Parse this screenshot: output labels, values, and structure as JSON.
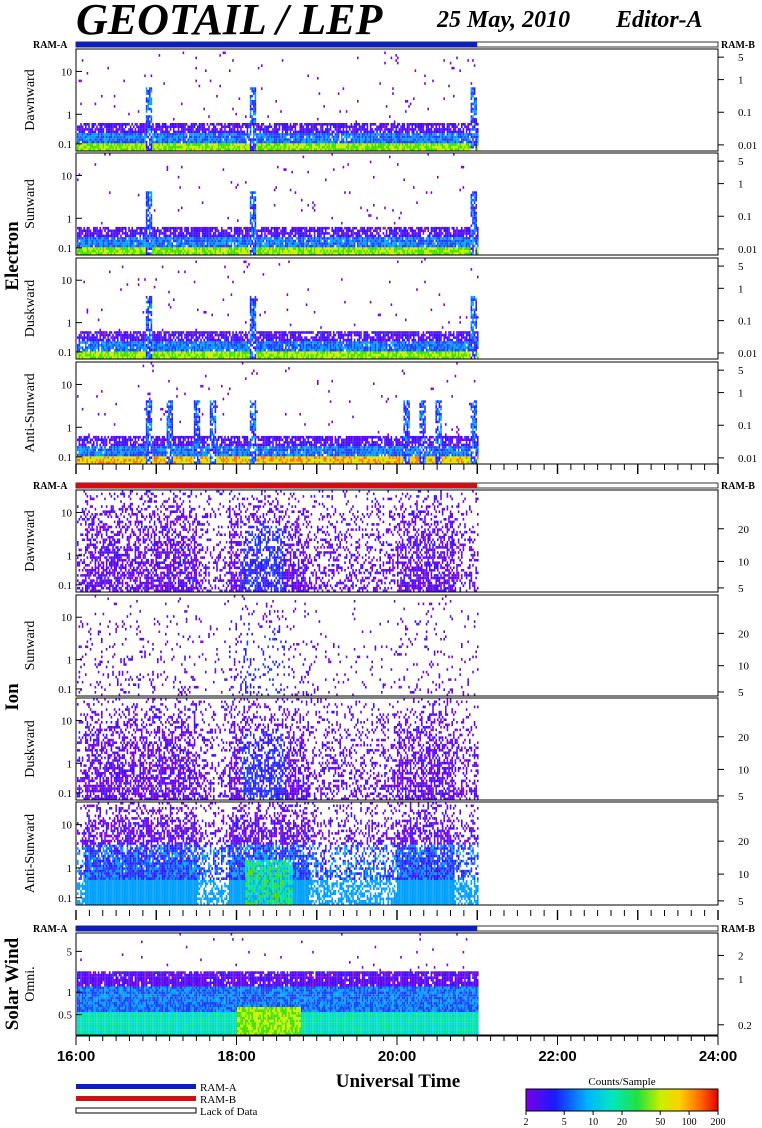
{
  "header": {
    "title": "GEOTAIL / LEP",
    "date": "25 May, 2010",
    "editor": "Editor-A"
  },
  "colors": {
    "ram_a": "#0a1ec8",
    "ram_b": "#d01010",
    "frame": "#000000",
    "background": "#ffffff"
  },
  "chart_data": {
    "type": "heatmap",
    "xlabel": "Universal Time",
    "x_ticks": [
      "16:00",
      "18:00",
      "20:00",
      "22:00",
      "24:00"
    ],
    "x_range": [
      "16:00",
      "24:00"
    ],
    "data_end": "21:00",
    "groups": [
      {
        "name": "Electron",
        "ram_left": "RAM-A",
        "ram_right": "RAM-B",
        "ram_state": "RAM-A",
        "panels": [
          {
            "label": "Dawnward",
            "left_ticks": [
              "10",
              "1",
              "0.1"
            ],
            "right_ticks": [
              "5",
              "1",
              "0.1",
              "0.01"
            ],
            "activity": "electron"
          },
          {
            "label": "Sunward",
            "left_ticks": [
              "10",
              "1",
              "0.1"
            ],
            "right_ticks": [
              "5",
              "1",
              "0.1",
              "0.01"
            ],
            "activity": "electron"
          },
          {
            "label": "Duskward",
            "left_ticks": [
              "10",
              "1",
              "0.1"
            ],
            "right_ticks": [
              "5",
              "1",
              "0.1",
              "0.01"
            ],
            "activity": "electron"
          },
          {
            "label": "Anti-Sunward",
            "left_ticks": [
              "10",
              "1",
              "0.1"
            ],
            "right_ticks": [
              "5",
              "1",
              "0.1",
              "0.01"
            ],
            "activity": "electron-anti"
          }
        ]
      },
      {
        "name": "Ion",
        "ram_left": "RAM-A",
        "ram_right": "RAM-B",
        "ram_state": "RAM-B",
        "panels": [
          {
            "label": "Dawnward",
            "left_ticks": [
              "10",
              "1",
              "0.1"
            ],
            "right_ticks": [
              "20",
              "10",
              "5"
            ],
            "activity": "ion"
          },
          {
            "label": "Sunward",
            "left_ticks": [
              "10",
              "1",
              "0.1"
            ],
            "right_ticks": [
              "20",
              "10",
              "5"
            ],
            "activity": "ion-sparse"
          },
          {
            "label": "Duskward",
            "left_ticks": [
              "10",
              "1",
              "0.1"
            ],
            "right_ticks": [
              "20",
              "10",
              "5"
            ],
            "activity": "ion"
          },
          {
            "label": "Anti-Sunward",
            "left_ticks": [
              "10",
              "1",
              "0.1"
            ],
            "right_ticks": [
              "20",
              "10",
              "5"
            ],
            "activity": "ion-anti"
          }
        ]
      },
      {
        "name": "Solar Wind",
        "ram_left": "RAM-A",
        "ram_right": "RAM-B",
        "ram_state": "RAM-A",
        "panels": [
          {
            "label": "Omni.",
            "left_ticks": [
              "5",
              "1",
              "0.5"
            ],
            "right_ticks": [
              "2",
              "1",
              "0.2"
            ],
            "activity": "solarwind"
          }
        ]
      }
    ],
    "legend": {
      "items": [
        "RAM-A",
        "RAM-B",
        "Lack of Data"
      ]
    },
    "colorbar": {
      "title": "Counts/Sample",
      "ticks": [
        "2",
        "5",
        "10",
        "20",
        "50",
        "100",
        "200"
      ],
      "scale": "log",
      "range": [
        2,
        200
      ]
    }
  }
}
